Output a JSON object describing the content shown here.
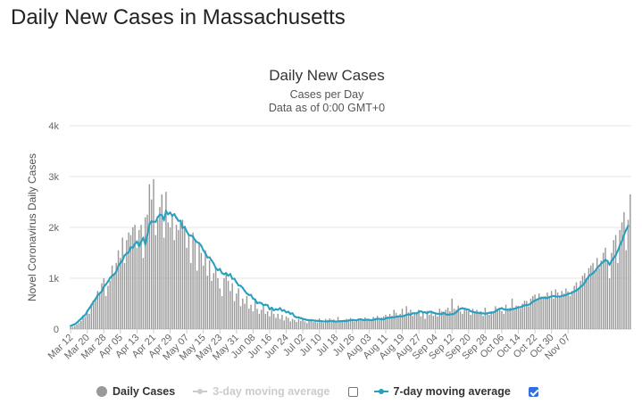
{
  "page": {
    "title": "Daily New Cases in Massachusetts"
  },
  "colors": {
    "bar": "#999999",
    "avg7": "#27a0c0",
    "avg3_disabled": "#cccccc",
    "checkbox_checked": "#2f6fde"
  },
  "legend": {
    "daily_cases": {
      "label": "Daily Cases",
      "icon": "filled-circle"
    },
    "avg3": {
      "label": "3-day moving average",
      "visible": false,
      "checkbox_checked": false
    },
    "avg7": {
      "label": "7-day moving average",
      "visible": true,
      "checkbox_checked": true
    }
  },
  "chart_data": {
    "type": "bar",
    "title": "Daily New Cases",
    "subtitle": "Cases per Day",
    "subtitle2": "Data as of 0:00 GMT+0",
    "ylabel": "Novel Coronavirus Daily Cases",
    "ylim": [
      0,
      4000
    ],
    "yticks": [
      0,
      1000,
      2000,
      3000,
      4000
    ],
    "ytick_labels": [
      "0",
      "1k",
      "2k",
      "3k",
      "4k"
    ],
    "grid": true,
    "legend_position": "bottom",
    "x_start": "2020-03-12",
    "xtick_labels": [
      "Mar 12",
      "Mar 20",
      "Mar 28",
      "Apr 05",
      "Apr 13",
      "Apr 21",
      "Apr 29",
      "May 07",
      "May 15",
      "May 23",
      "May 31",
      "Jun 08",
      "Jun 16",
      "Jun 24",
      "Jul 02",
      "Jul 10",
      "Jul 18",
      "Jul 26",
      "Aug 03",
      "Aug 11",
      "Aug 19",
      "Aug 27",
      "Sep 04",
      "Sep 12",
      "Sep 20",
      "Sep 28",
      "Oct 06",
      "Oct 14",
      "Oct 22",
      "Oct 30",
      "Nov 07"
    ],
    "series": [
      {
        "name": "Daily Cases",
        "values": [
          35,
          45,
          60,
          90,
          120,
          160,
          260,
          240,
          380,
          300,
          500,
          560,
          600,
          750,
          720,
          900,
          1000,
          650,
          850,
          950,
          1250,
          1100,
          1300,
          1550,
          1400,
          1800,
          1300,
          1750,
          1900,
          1850,
          2000,
          2050,
          1600,
          1950,
          2050,
          1400,
          2200,
          2250,
          2850,
          2550,
          2950,
          1850,
          2150,
          2400,
          2650,
          1800,
          2700,
          2100,
          2000,
          2250,
          1750,
          2050,
          1950,
          2100,
          2150,
          2000,
          1600,
          1850,
          1300,
          1900,
          1750,
          1150,
          1700,
          1500,
          1250,
          1550,
          1050,
          1350,
          950,
          1100,
          1200,
          1000,
          800,
          650,
          1000,
          1100,
          950,
          750,
          900,
          550,
          700,
          800,
          450,
          600,
          500,
          650,
          400,
          480,
          350,
          600,
          400,
          300,
          380,
          450,
          300,
          350,
          250,
          420,
          300,
          220,
          300,
          200,
          280,
          170,
          250,
          220,
          150,
          200,
          180,
          140,
          200,
          160,
          210,
          150,
          120,
          180,
          200,
          140,
          160,
          130,
          210,
          150,
          120,
          200,
          180,
          210,
          140,
          190,
          160,
          240,
          170,
          150,
          180,
          200,
          160,
          220,
          180,
          150,
          190,
          200,
          210,
          170,
          230,
          180,
          200,
          160,
          240,
          210,
          260,
          180,
          230,
          250,
          280,
          220,
          300,
          260,
          380,
          320,
          260,
          300,
          400,
          280,
          450,
          330,
          380,
          260,
          330,
          300,
          380,
          250,
          340,
          200,
          360,
          280,
          320,
          260,
          300,
          250,
          400,
          350,
          300,
          380,
          420,
          350,
          600,
          400,
          380,
          460,
          350,
          300,
          420,
          380,
          350,
          280,
          400,
          320,
          380,
          300,
          350,
          260,
          420,
          300,
          280,
          350,
          320,
          450,
          380,
          420,
          350,
          300,
          480,
          400,
          420,
          600,
          380,
          460,
          450,
          400,
          500,
          560,
          550,
          450,
          600,
          650,
          680,
          600,
          700,
          640,
          600,
          650,
          720,
          650,
          750,
          600,
          780,
          720,
          640,
          750,
          700,
          800,
          740,
          650,
          750,
          850,
          920,
          800,
          950,
          1050,
          1100,
          1000,
          1200,
          1250,
          1300,
          1150,
          1400,
          1200,
          1350,
          1500,
          1600,
          1350,
          1000,
          1500,
          1750,
          1850,
          1300,
          1950,
          2100,
          2300,
          1550,
          2150,
          2650
        ]
      },
      {
        "name": "7-day moving average",
        "values": [
          60,
          80,
          95,
          125,
          165,
          200,
          250,
          275,
          350,
          410,
          470,
          540,
          590,
          660,
          705,
          740,
          830,
          880,
          935,
          1005,
          1050,
          1075,
          1135,
          1240,
          1300,
          1350,
          1450,
          1485,
          1515,
          1610,
          1600,
          1675,
          1720,
          1630,
          1720,
          1790,
          1670,
          1850,
          2060,
          2120,
          2110,
          2110,
          2200,
          2250,
          2240,
          2150,
          2320,
          2260,
          2290,
          2230,
          2260,
          2190,
          2130,
          2130,
          1990,
          2010,
          1920,
          1850,
          1840,
          1820,
          1750,
          1710,
          1690,
          1640,
          1550,
          1490,
          1410,
          1410,
          1350,
          1290,
          1200,
          1160,
          1180,
          1100,
          1080,
          1100,
          1050,
          1080,
          990,
          990,
          920,
          860,
          850,
          810,
          750,
          700,
          670,
          670,
          600,
          580,
          510,
          520,
          510,
          470,
          480,
          470,
          390,
          420,
          370,
          390,
          380,
          410,
          360,
          370,
          330,
          340,
          300,
          310,
          250,
          230,
          230,
          215,
          200,
          190,
          180,
          175,
          170,
          170,
          165,
          160,
          160,
          155,
          150,
          150,
          150,
          155,
          160,
          150,
          150,
          150,
          155,
          155,
          160,
          155,
          170,
          170,
          180,
          175,
          170,
          190,
          190,
          180,
          175,
          185,
          180,
          175,
          180,
          195,
          200,
          200,
          190,
          190,
          210,
          225,
          220,
          230,
          230,
          240,
          250,
          250,
          250,
          265,
          280,
          290,
          280,
          310,
          310,
          310,
          340,
          350,
          330,
          330,
          310,
          340,
          340,
          320,
          310,
          300,
          300,
          290,
          320,
          290,
          280,
          290,
          290,
          300,
          330,
          370,
          400,
          410,
          400,
          390,
          380,
          350,
          340,
          330,
          320,
          320,
          310,
          310,
          300,
          310,
          320,
          320,
          330,
          350,
          380,
          400,
          410,
          390,
          380,
          380,
          380,
          390,
          400,
          410,
          430,
          430,
          450,
          470,
          470,
          480,
          500,
          540,
          560,
          580,
          600,
          610,
          620,
          610,
          610,
          630,
          640,
          650,
          640,
          640,
          640,
          650,
          660,
          670,
          690,
          700,
          720,
          740,
          760,
          790,
          830,
          860,
          910,
          980,
          1040,
          1070,
          1100,
          1140,
          1200,
          1240,
          1290,
          1320,
          1360,
          1340,
          1270,
          1340,
          1400,
          1450,
          1540,
          1650,
          1730,
          1850,
          1950,
          2030
        ]
      }
    ]
  }
}
